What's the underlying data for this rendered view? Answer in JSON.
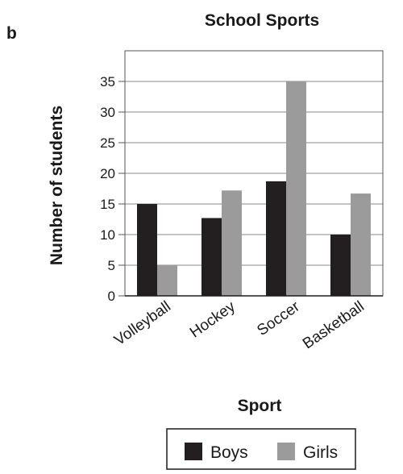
{
  "panel_label": "b",
  "colors": {
    "boys": "#231f20",
    "girls": "#9b9b9b",
    "axis": "#555555",
    "grid": "#8a8a8a"
  },
  "chart_data": {
    "type": "bar",
    "title": "School Sports",
    "xlabel": "Sport",
    "ylabel": "Number of students",
    "categories": [
      "Volleyball",
      "Hockey",
      "Soccer",
      "Basketball"
    ],
    "series": [
      {
        "name": "Boys",
        "values": [
          15,
          12.7,
          18.7,
          10
        ]
      },
      {
        "name": "Girls",
        "values": [
          5,
          17.2,
          35,
          16.7
        ]
      }
    ],
    "ylim": [
      0,
      40
    ],
    "yticks": [
      0,
      5,
      10,
      15,
      20,
      25,
      30,
      35
    ],
    "grid": true,
    "legend": "bottom"
  }
}
